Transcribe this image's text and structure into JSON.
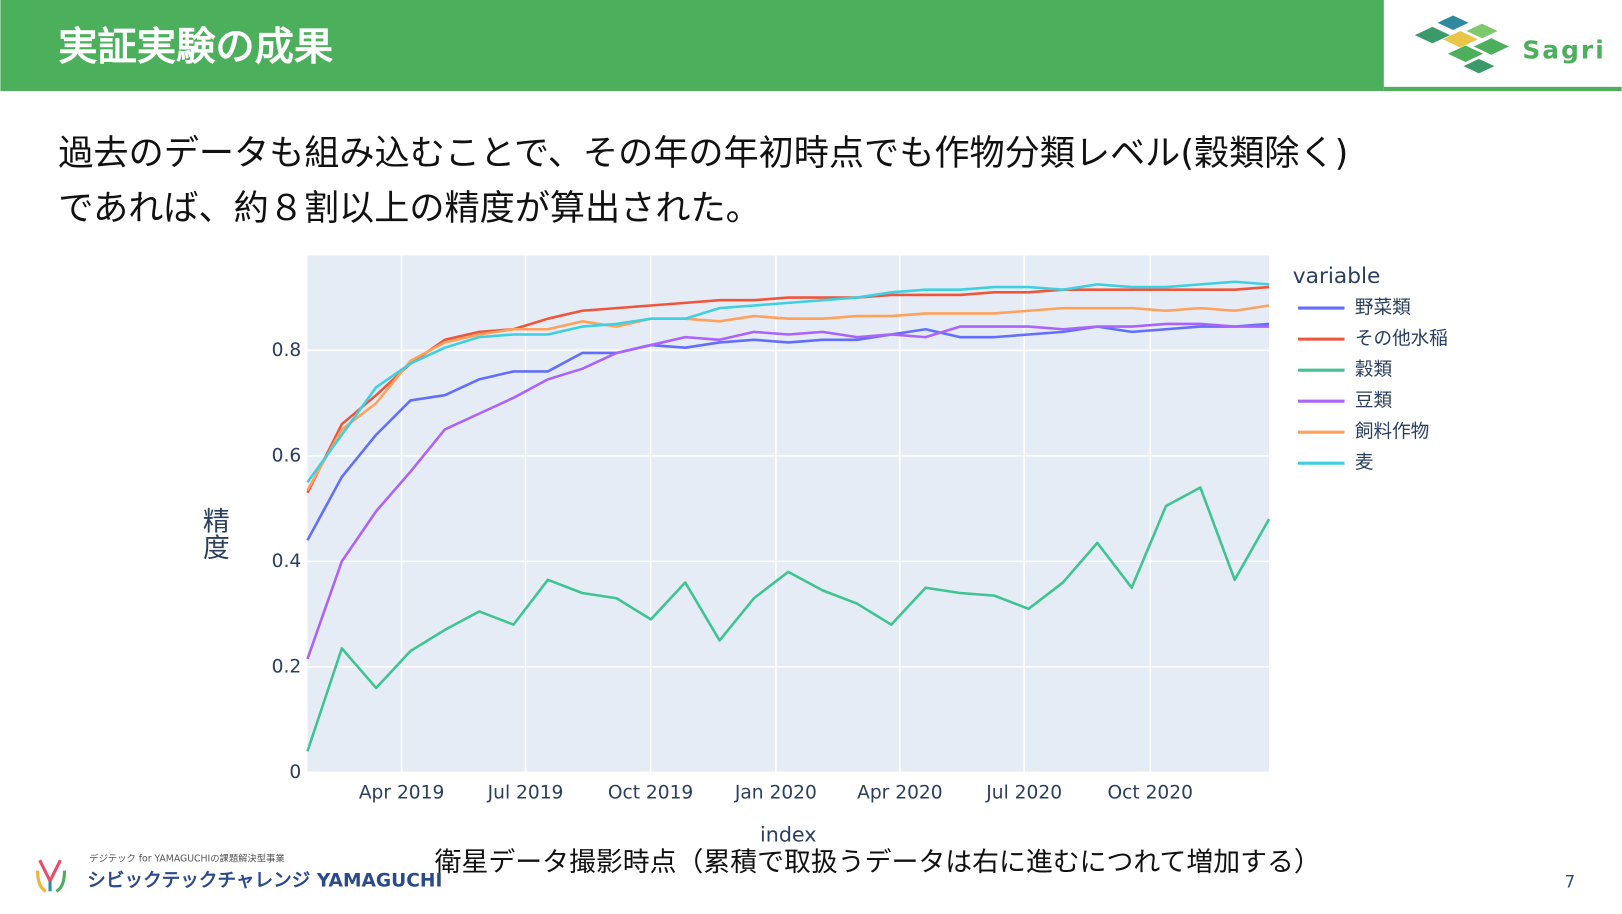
{
  "header": {
    "title": "実証実験の成果",
    "logo": "Sagri"
  },
  "body": {
    "lines": [
      "過去のデータも組み込むことで、その年の年初時点でも作物分類レベル(穀類除く)",
      "であれば、約８割以上の精度が算出された。"
    ]
  },
  "chart_data": {
    "type": "line",
    "xlabel": "index",
    "ylabel": "精度",
    "legend_title": "variable",
    "legend": "right",
    "grid": true,
    "x": [
      0,
      1,
      2,
      3,
      4,
      5,
      6,
      7,
      8,
      9,
      10,
      11,
      12,
      13,
      14,
      15,
      16,
      17,
      18,
      19,
      20,
      21,
      22,
      23,
      24,
      25,
      26,
      27,
      28
    ],
    "xlim": [
      0,
      28
    ],
    "xticks": [
      {
        "value": 2.74,
        "label": "Apr 2019"
      },
      {
        "value": 6.35,
        "label": "Jul 2019"
      },
      {
        "value": 9.99,
        "label": "Oct 2019"
      },
      {
        "value": 13.64,
        "label": "Jan 2020"
      },
      {
        "value": 17.25,
        "label": "Apr 2020"
      },
      {
        "value": 20.87,
        "label": "Jul 2020"
      },
      {
        "value": 24.54,
        "label": "Oct 2020"
      }
    ],
    "ylim": [
      0,
      0.98
    ],
    "yticks": [
      0,
      0.2,
      0.4,
      0.6,
      0.8
    ],
    "series": [
      {
        "name": "野菜類",
        "color": "#636efa",
        "values": [
          0.44,
          0.56,
          0.64,
          0.705,
          0.715,
          0.745,
          0.76,
          0.76,
          0.795,
          0.795,
          0.81,
          0.805,
          0.815,
          0.82,
          0.815,
          0.82,
          0.82,
          0.83,
          0.84,
          0.825,
          0.825,
          0.83,
          0.835,
          0.845,
          0.835,
          0.84,
          0.845,
          0.845,
          0.85
        ]
      },
      {
        "name": "その他水稲",
        "color": "#ef553b",
        "values": [
          0.53,
          0.66,
          0.715,
          0.775,
          0.82,
          0.835,
          0.84,
          0.86,
          0.875,
          0.88,
          0.885,
          0.89,
          0.895,
          0.895,
          0.9,
          0.9,
          0.9,
          0.905,
          0.905,
          0.905,
          0.91,
          0.91,
          0.915,
          0.915,
          0.915,
          0.915,
          0.915,
          0.915,
          0.92
        ]
      },
      {
        "name": "穀類",
        "color": "#3fc491",
        "values": [
          0.04,
          0.235,
          0.16,
          0.23,
          0.27,
          0.305,
          0.28,
          0.365,
          0.34,
          0.33,
          0.29,
          0.36,
          0.25,
          0.33,
          0.38,
          0.345,
          0.32,
          0.28,
          0.35,
          0.34,
          0.335,
          0.31,
          0.36,
          0.435,
          0.35,
          0.505,
          0.54,
          0.365,
          0.48
        ]
      },
      {
        "name": "豆類",
        "color": "#ab63fa",
        "values": [
          0.215,
          0.4,
          0.495,
          0.57,
          0.65,
          0.68,
          0.71,
          0.745,
          0.765,
          0.795,
          0.81,
          0.825,
          0.82,
          0.835,
          0.83,
          0.835,
          0.825,
          0.83,
          0.825,
          0.845,
          0.845,
          0.845,
          0.84,
          0.845,
          0.845,
          0.85,
          0.85,
          0.845,
          0.845
        ]
      },
      {
        "name": "飼料作物",
        "color": "#ffa15a",
        "values": [
          0.535,
          0.65,
          0.7,
          0.78,
          0.815,
          0.83,
          0.84,
          0.84,
          0.855,
          0.845,
          0.86,
          0.86,
          0.855,
          0.865,
          0.86,
          0.86,
          0.865,
          0.865,
          0.87,
          0.87,
          0.87,
          0.875,
          0.88,
          0.88,
          0.88,
          0.875,
          0.88,
          0.875,
          0.885
        ]
      },
      {
        "name": "麦",
        "color": "#3ecfe0",
        "values": [
          0.55,
          0.64,
          0.73,
          0.775,
          0.805,
          0.825,
          0.83,
          0.83,
          0.845,
          0.85,
          0.86,
          0.86,
          0.88,
          0.885,
          0.89,
          0.895,
          0.9,
          0.91,
          0.915,
          0.915,
          0.92,
          0.92,
          0.915,
          0.925,
          0.92,
          0.92,
          0.925,
          0.93,
          0.925
        ]
      }
    ]
  },
  "caption": "衛星データ撮影時点（累積で取扱うデータは右に進むにつれて増加する）",
  "footer": {
    "small": "デジテック for YAMAGUCHIの課題解決型事業",
    "name": "シビックテックチャレンジ YAMAGUCHI",
    "page": "7"
  }
}
